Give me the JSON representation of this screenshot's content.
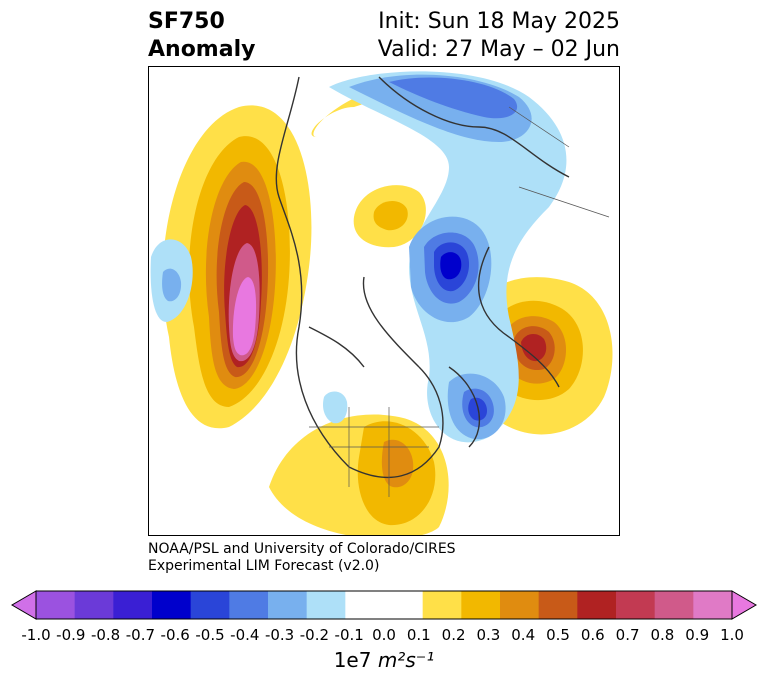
{
  "title": {
    "variable": "SF750",
    "kind": "Anomaly",
    "init": "Init: Sun 18 May 2025",
    "valid": "Valid: 27 May – 02 Jun"
  },
  "credit": {
    "line1": "NOAA/PSL and University of Colorado/CIRES",
    "line2": "Experimental LIM Forecast (v2.0)"
  },
  "colorbar": {
    "ticks": [
      "-1.0",
      "-0.9",
      "-0.8",
      "-0.7",
      "-0.6",
      "-0.5",
      "-0.4",
      "-0.3",
      "-0.2",
      "-0.1",
      "0.0",
      "0.1",
      "0.2",
      "0.3",
      "0.4",
      "0.5",
      "0.6",
      "0.7",
      "0.8",
      "0.9",
      "1.0"
    ],
    "colors": [
      "#9b52e0",
      "#6b3ad8",
      "#3a1fd4",
      "#0000cc",
      "#2a45d8",
      "#4f7be4",
      "#78b0ee",
      "#aee0f8",
      "#ffffff",
      "#ffffff",
      "#ffe048",
      "#f2b800",
      "#e08c10",
      "#c85a18",
      "#b02222",
      "#c23a52",
      "#d05a8a",
      "#e07ac6"
    ],
    "under_color": "#d070e8",
    "over_color": "#e878e0",
    "label_prefix": "1e7",
    "label_units": "m²s⁻¹"
  },
  "colors": {
    "positive_light": "#ffe048",
    "positive_mid": "#f2b800",
    "positive_strong": "#e08c10",
    "positive_stronger": "#c85a18",
    "positive_red": "#b02222",
    "positive_pink": "#d05a8a",
    "positive_magenta": "#e878e0",
    "negative_light": "#aee0f8",
    "negative_mid": "#78b0ee",
    "negative_strong": "#4f7be4",
    "negative_stronger": "#2a45d8",
    "negative_darkest": "#0000cc",
    "coast": "#333333"
  }
}
